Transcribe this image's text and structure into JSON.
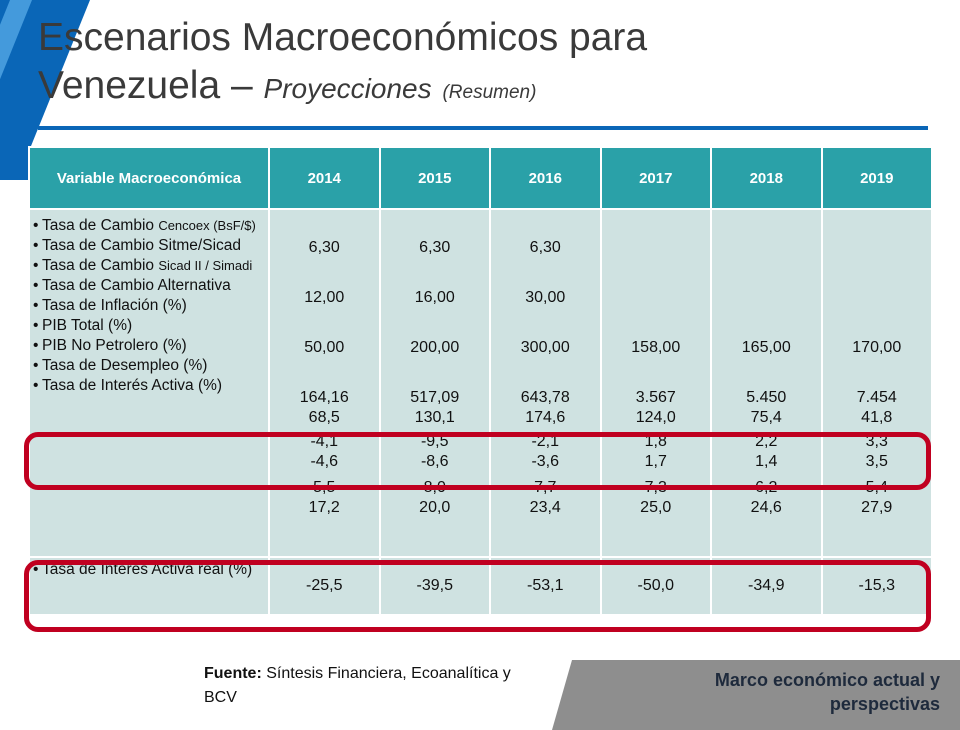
{
  "title": {
    "line1": "Escenarios Macroeconómicos para",
    "line2_main": "Venezuela – ",
    "line2_italic": "Proyecciones",
    "line2_small": "(Resumen)"
  },
  "table": {
    "header_variable": "Variable Macroeconómica",
    "years": [
      "2014",
      "2015",
      "2016",
      "2017",
      "2018",
      "2019"
    ],
    "variables": [
      {
        "main": "Tasa de Cambio ",
        "small": "Cencoex (BsF/$)"
      },
      {
        "main": "Tasa de Cambio Sitme/Sicad",
        "small": ""
      },
      {
        "main": "Tasa de Cambio ",
        "small": "Sicad II / Simadi"
      },
      {
        "main": "Tasa de Cambio Alternativa",
        "small": ""
      },
      {
        "main": "Tasa de Inflación (%)",
        "small": ""
      },
      {
        "main": "PIB Total (%)",
        "small": ""
      },
      {
        "main": "PIB No Petrolero (%)",
        "small": ""
      },
      {
        "main": "Tasa de Desempleo (%)",
        "small": ""
      },
      {
        "main": "Tasa de Interés Activa (%)",
        "small": ""
      }
    ],
    "real_rate_label": "Tasa de Interés Activa real (%)",
    "columns": [
      {
        "values": [
          "6,30",
          "12,00",
          "50,00",
          "164,16",
          "68,5",
          "-4,1",
          "-4,6",
          "5,5",
          "17,2"
        ],
        "real": "-25,5"
      },
      {
        "values": [
          "6,30",
          "16,00",
          "200,00",
          "517,09",
          "130,1",
          "-9,5",
          "-8,6",
          "8,0",
          "20,0"
        ],
        "real": "-39,5"
      },
      {
        "values": [
          "6,30",
          "30,00",
          "300,00",
          "643,78",
          "174,6",
          "-2,1",
          "-3,6",
          "7,7",
          "23,4"
        ],
        "real": "-53,1"
      },
      {
        "values": [
          "",
          "",
          "158,00",
          "3.567",
          "124,0",
          "1,8",
          "1,7",
          "7,3",
          "25,0"
        ],
        "real": "-50,0"
      },
      {
        "values": [
          "",
          "",
          "165,00",
          "5.450",
          "75,4",
          "2,2",
          "1,4",
          "6,2",
          "24,6"
        ],
        "real": "-34,9"
      },
      {
        "values": [
          "",
          "",
          "170,00",
          "7.454",
          "41,8",
          "3,3",
          "3,5",
          "5,4",
          "27,9"
        ],
        "real": "-15,3"
      }
    ]
  },
  "source": {
    "label": "Fuente:",
    "text": " Síntesis Financiera, Ecoanalítica y BCV"
  },
  "footer": {
    "text": "Marco económico actual y perspectivas"
  },
  "colors": {
    "header": "#2aa1a8",
    "cell": "#cfe2e1",
    "accent_blue": "#0a66b7",
    "highlight_red": "#c00020",
    "footer_bg": "#8e8e8e"
  }
}
